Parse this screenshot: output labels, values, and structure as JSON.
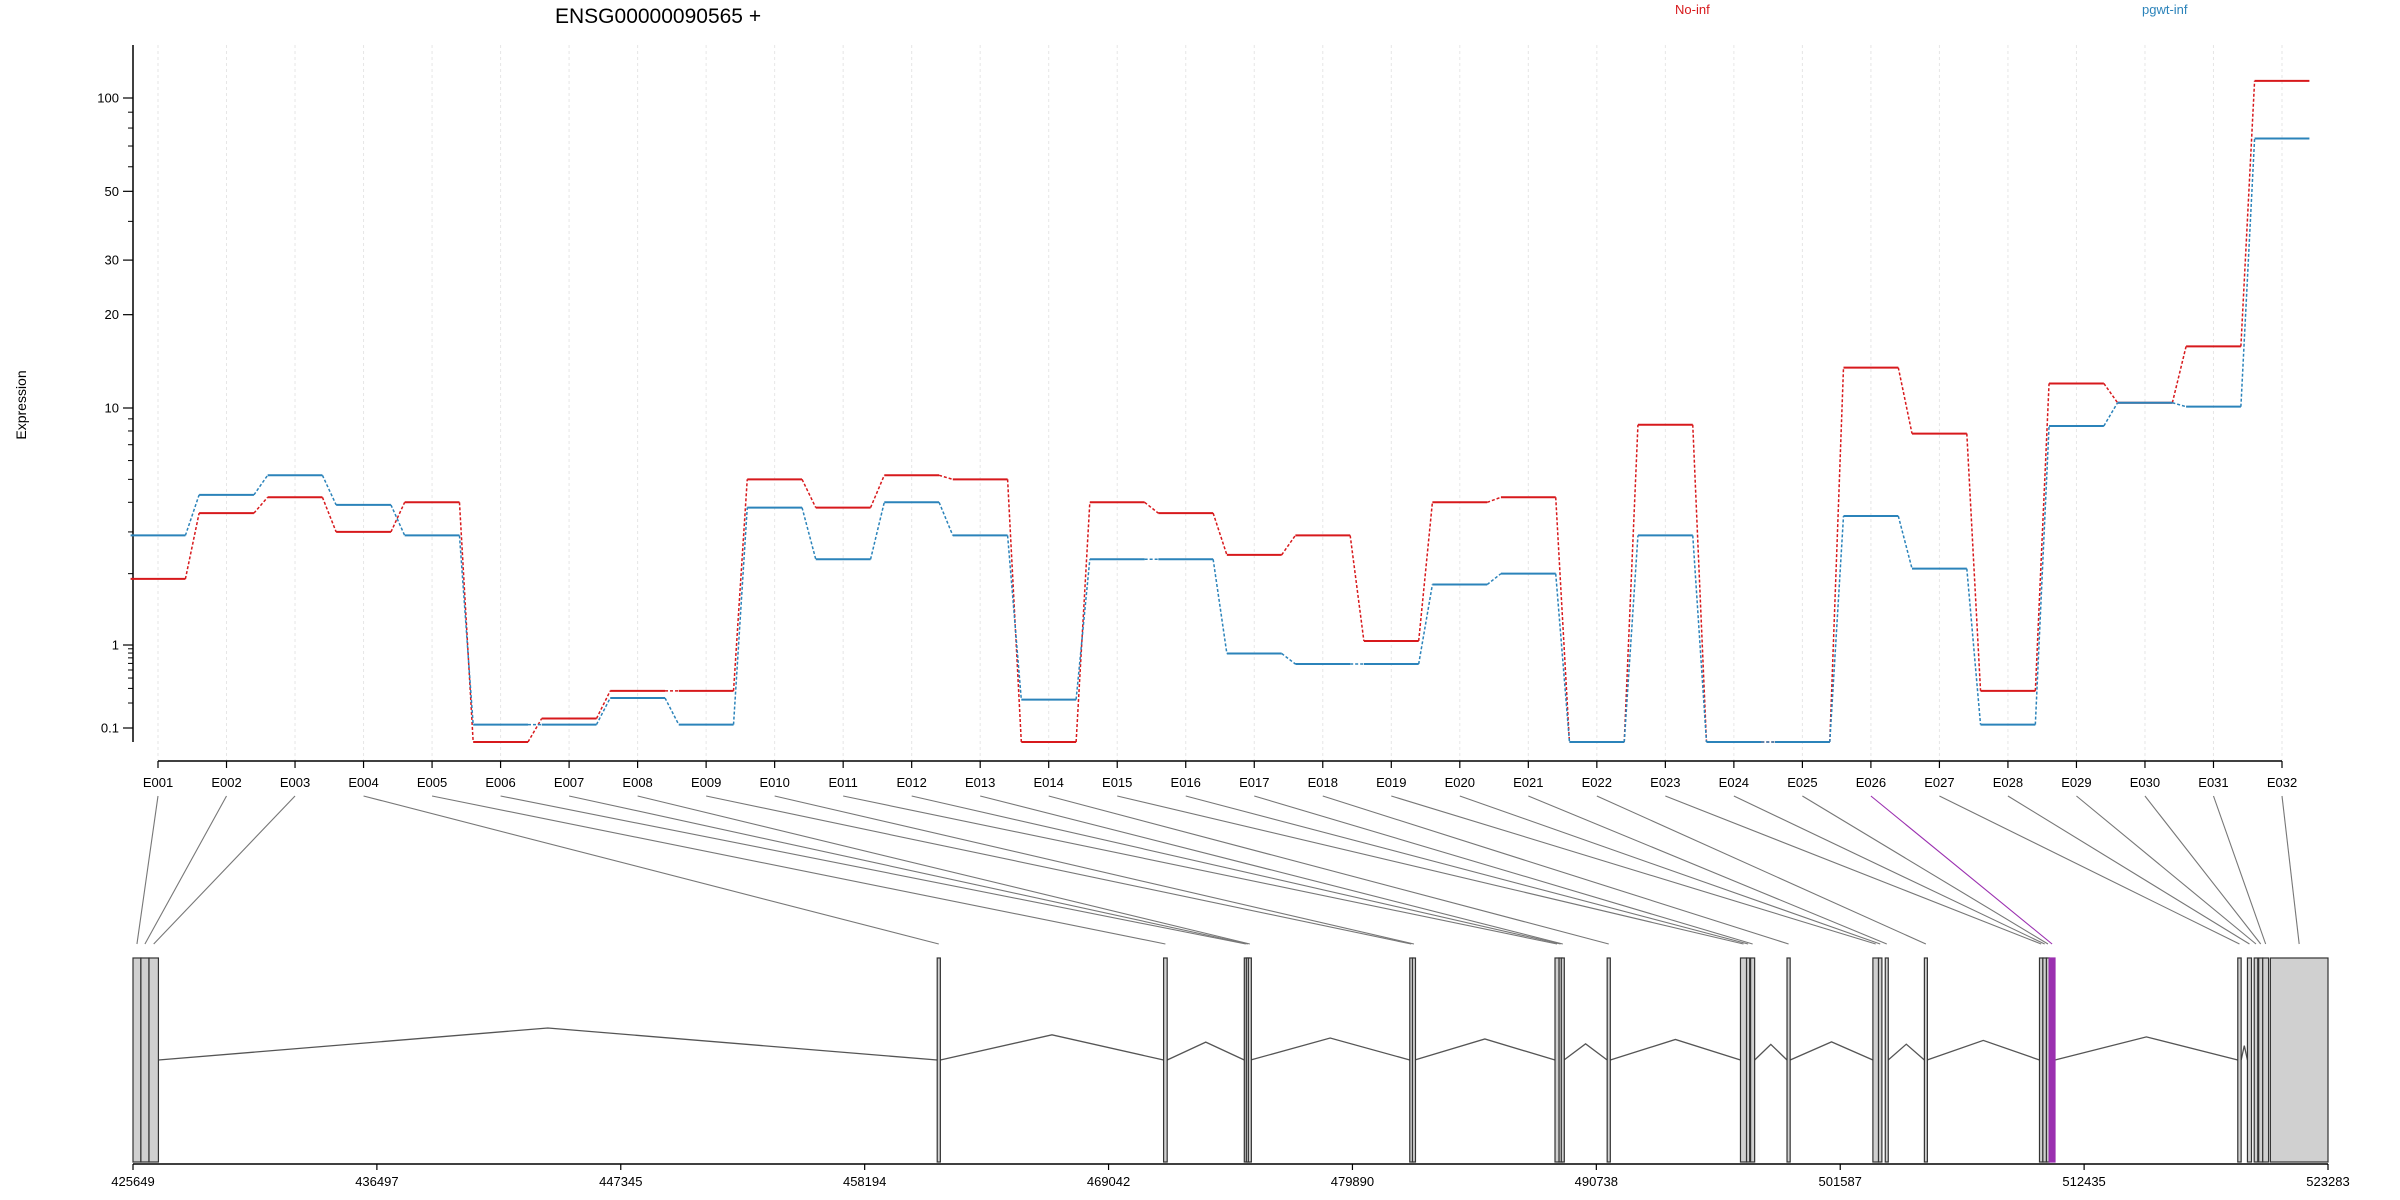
{
  "chart_data": {
    "type": "line",
    "title": "ENSG00000090565 +",
    "ylabel": "Expression",
    "xlabel": "",
    "yscale": "log",
    "y_ticks": [
      0.1,
      1,
      10,
      20,
      30,
      50,
      100
    ],
    "y_tick_labels": [
      "0.1",
      "1",
      "10",
      "20",
      "30",
      "50",
      "100"
    ],
    "ylim": [
      0.07,
      180
    ],
    "grid": "vertical dashed at each exon",
    "legend_placement": "top, separate labels",
    "categories": [
      "E001",
      "E002",
      "E003",
      "E004",
      "E005",
      "E006",
      "E007",
      "E008",
      "E009",
      "E010",
      "E011",
      "E012",
      "E013",
      "E014",
      "E015",
      "E016",
      "E017",
      "E018",
      "E019",
      "E020",
      "E021",
      "E022",
      "E023",
      "E024",
      "E025",
      "E026",
      "E027",
      "E028",
      "E029",
      "E030",
      "E031",
      "E032"
    ],
    "series": [
      {
        "name": "No-inf",
        "color": "#d7191c",
        "values": [
          1.9,
          3.6,
          4.2,
          3.0,
          4.0,
          0.07,
          0.13,
          0.28,
          0.28,
          5.0,
          3.8,
          5.2,
          5.0,
          0.07,
          4.0,
          3.6,
          2.4,
          2.9,
          1.04,
          4.0,
          4.2,
          0.07,
          8.5,
          0.07,
          0.07,
          13.5,
          7.8,
          0.28,
          12.0,
          10.4,
          15.8,
          140
        ]
      },
      {
        "name": "pgwt-inf",
        "color": "#2b83ba",
        "values": [
          2.9,
          4.3,
          5.2,
          3.9,
          2.9,
          0.11,
          0.11,
          0.23,
          0.11,
          3.8,
          2.3,
          4.0,
          2.9,
          0.22,
          2.3,
          2.3,
          0.79,
          0.59,
          0.59,
          1.8,
          2.0,
          0.07,
          2.9,
          0.07,
          0.07,
          3.5,
          2.1,
          0.11,
          8.4,
          10.4,
          10.1,
          74
        ]
      }
    ],
    "gene_model": {
      "coord_ticks": [
        "425649",
        "436497",
        "447345",
        "458194",
        "469042",
        "479890",
        "490738",
        "501587",
        "512435",
        "523283"
      ],
      "coord_range": [
        425649,
        523283
      ],
      "highlighted_exon": "E026",
      "highlight_color": "#9b30b0",
      "exons": [
        {
          "id": "E001",
          "start": 425649,
          "end": 426000
        },
        {
          "id": "E002",
          "start": 426000,
          "end": 426360
        },
        {
          "id": "E003",
          "start": 426360,
          "end": 426780
        },
        {
          "id": "E004",
          "start": 461420,
          "end": 461560
        },
        {
          "id": "E005",
          "start": 471490,
          "end": 471650
        },
        {
          "id": "E006",
          "start": 475080,
          "end": 475170
        },
        {
          "id": "E007",
          "start": 475170,
          "end": 475260
        },
        {
          "id": "E008",
          "start": 475260,
          "end": 475360
        },
        {
          "id": "E009",
          "start": 482440,
          "end": 482560
        },
        {
          "id": "E010",
          "start": 482560,
          "end": 482660
        },
        {
          "id": "E011",
          "start": 488900,
          "end": 489080
        },
        {
          "id": "E012",
          "start": 489080,
          "end": 489180
        },
        {
          "id": "E013",
          "start": 489180,
          "end": 489300
        },
        {
          "id": "E014",
          "start": 491220,
          "end": 491360
        },
        {
          "id": "E015",
          "start": 497150,
          "end": 497420
        },
        {
          "id": "E016",
          "start": 497420,
          "end": 497560
        },
        {
          "id": "E017",
          "start": 497600,
          "end": 497780
        },
        {
          "id": "E018",
          "start": 499220,
          "end": 499360
        },
        {
          "id": "E019",
          "start": 503040,
          "end": 503290
        },
        {
          "id": "E020",
          "start": 503290,
          "end": 503440
        },
        {
          "id": "E021",
          "start": 503590,
          "end": 503720
        },
        {
          "id": "E022",
          "start": 505330,
          "end": 505450
        },
        {
          "id": "E023",
          "start": 510450,
          "end": 510600
        },
        {
          "id": "E024",
          "start": 510600,
          "end": 510760
        },
        {
          "id": "E025",
          "start": 510760,
          "end": 510880
        },
        {
          "id": "E026",
          "start": 510880,
          "end": 511140
        },
        {
          "id": "E027",
          "start": 519270,
          "end": 519420
        },
        {
          "id": "E028",
          "start": 519700,
          "end": 519880
        },
        {
          "id": "E029",
          "start": 520000,
          "end": 520160
        },
        {
          "id": "E030",
          "start": 520200,
          "end": 520380
        },
        {
          "id": "E031",
          "start": 520380,
          "end": 520640
        },
        {
          "id": "E032",
          "start": 520720,
          "end": 523283
        }
      ]
    }
  }
}
